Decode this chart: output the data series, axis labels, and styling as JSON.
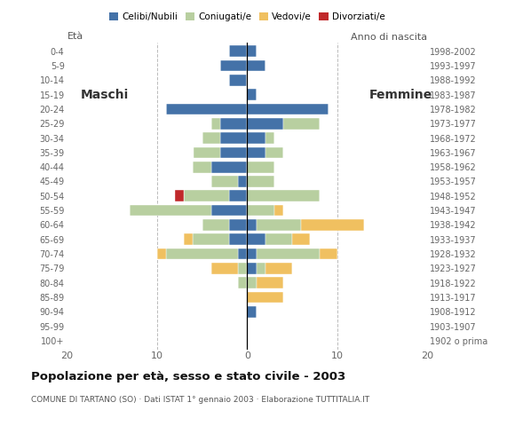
{
  "age_groups": [
    "100+",
    "95-99",
    "90-94",
    "85-89",
    "80-84",
    "75-79",
    "70-74",
    "65-69",
    "60-64",
    "55-59",
    "50-54",
    "45-49",
    "40-44",
    "35-39",
    "30-34",
    "25-29",
    "20-24",
    "15-19",
    "10-14",
    "5-9",
    "0-4"
  ],
  "birth_years": [
    "1902 o prima",
    "1903-1907",
    "1908-1912",
    "1913-1917",
    "1918-1922",
    "1923-1927",
    "1928-1932",
    "1933-1937",
    "1938-1942",
    "1943-1947",
    "1948-1952",
    "1953-1957",
    "1958-1962",
    "1963-1967",
    "1968-1972",
    "1973-1977",
    "1978-1982",
    "1983-1987",
    "1988-1992",
    "1993-1997",
    "1998-2002"
  ],
  "colors": {
    "celibe": "#4472a8",
    "coniugato": "#b8cfa0",
    "vedovo": "#f0c060",
    "divorziato": "#c0282a"
  },
  "males": {
    "celibe": [
      0,
      0,
      0,
      0,
      0,
      0,
      1,
      2,
      2,
      4,
      2,
      1,
      4,
      3,
      3,
      3,
      9,
      0,
      2,
      3,
      2
    ],
    "coniugato": [
      0,
      0,
      0,
      0,
      1,
      1,
      8,
      4,
      3,
      9,
      5,
      3,
      2,
      3,
      2,
      1,
      0,
      0,
      0,
      0,
      0
    ],
    "vedovo": [
      0,
      0,
      0,
      0,
      0,
      3,
      1,
      1,
      0,
      0,
      0,
      0,
      0,
      0,
      0,
      0,
      0,
      0,
      0,
      0,
      0
    ],
    "divorziato": [
      0,
      0,
      0,
      0,
      0,
      0,
      0,
      0,
      0,
      0,
      1,
      0,
      0,
      0,
      0,
      0,
      0,
      0,
      0,
      0,
      0
    ]
  },
  "females": {
    "nubile": [
      0,
      0,
      1,
      0,
      0,
      1,
      1,
      2,
      1,
      0,
      0,
      0,
      0,
      2,
      2,
      4,
      9,
      1,
      0,
      2,
      1
    ],
    "coniugata": [
      0,
      0,
      0,
      0,
      1,
      1,
      7,
      3,
      5,
      3,
      8,
      3,
      3,
      2,
      1,
      4,
      0,
      0,
      0,
      0,
      0
    ],
    "vedova": [
      0,
      0,
      0,
      4,
      3,
      3,
      2,
      2,
      7,
      1,
      0,
      0,
      0,
      0,
      0,
      0,
      0,
      0,
      0,
      0,
      0
    ],
    "divorziata": [
      0,
      0,
      0,
      0,
      0,
      0,
      0,
      0,
      0,
      0,
      0,
      0,
      0,
      0,
      0,
      0,
      0,
      0,
      0,
      0,
      0
    ]
  },
  "xlim": 20,
  "title": "Popolazione per età, sesso e stato civile - 2003",
  "subtitle": "COMUNE DI TARTANO (SO) · Dati ISTAT 1° gennaio 2003 · Elaborazione TUTTITALIA.IT",
  "ylabel_left": "Età",
  "ylabel_right": "Anno di nascita",
  "label_maschi": "Maschi",
  "label_femmine": "Femmine",
  "legend_labels": [
    "Celibi/Nubili",
    "Coniugati/e",
    "Vedovi/e",
    "Divorziati/e"
  ],
  "background_color": "#ffffff",
  "grid_color": "#cccccc"
}
